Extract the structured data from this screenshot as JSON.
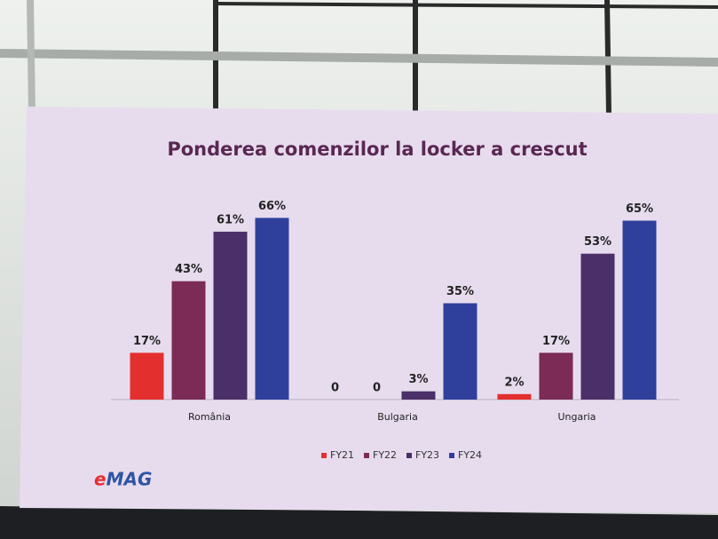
{
  "chart_data": {
    "type": "bar",
    "title": "Ponderea comenzilor la locker a crescut",
    "categories": [
      "România",
      "Bulgaria",
      "Ungaria"
    ],
    "series": [
      {
        "name": "FY21",
        "color": "#e3302f",
        "values": [
          17,
          0,
          2
        ],
        "value_labels": [
          "17%",
          "0",
          "2%"
        ]
      },
      {
        "name": "FY22",
        "color": "#7b2b56",
        "values": [
          43,
          0,
          17
        ],
        "value_labels": [
          "43%",
          "0",
          "17%"
        ]
      },
      {
        "name": "FY23",
        "color": "#4b2f69",
        "values": [
          61,
          3,
          53
        ],
        "value_labels": [
          "61%",
          "3%",
          "53%"
        ]
      },
      {
        "name": "FY24",
        "color": "#2f3f9c",
        "values": [
          66,
          35,
          65
        ],
        "value_labels": [
          "66%",
          "35%",
          "65%"
        ]
      }
    ],
    "legend": "bottom",
    "grid": false
  },
  "brand": "eMAG"
}
